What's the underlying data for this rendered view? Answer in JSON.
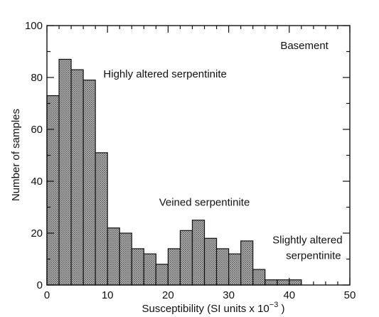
{
  "chart_data": {
    "type": "bar",
    "subtype": "histogram",
    "xlabel": "Susceptibility (SI units x 10",
    "xlabel_exponent": "−3",
    "xlabel_suffix": " )",
    "ylabel": "Number of samples",
    "xlim": [
      0,
      50
    ],
    "ylim": [
      0,
      100
    ],
    "x_ticks": [
      0,
      10,
      20,
      30,
      40,
      50
    ],
    "y_ticks": [
      0,
      20,
      40,
      60,
      80,
      100
    ],
    "bin_width": 2,
    "bins": [
      {
        "x0": 0,
        "x1": 2,
        "value": 73
      },
      {
        "x0": 2,
        "x1": 4,
        "value": 87
      },
      {
        "x0": 4,
        "x1": 6,
        "value": 83
      },
      {
        "x0": 6,
        "x1": 8,
        "value": 79
      },
      {
        "x0": 8,
        "x1": 10,
        "value": 51
      },
      {
        "x0": 10,
        "x1": 12,
        "value": 22
      },
      {
        "x0": 12,
        "x1": 14,
        "value": 20
      },
      {
        "x0": 14,
        "x1": 16,
        "value": 14
      },
      {
        "x0": 16,
        "x1": 18,
        "value": 12
      },
      {
        "x0": 18,
        "x1": 20,
        "value": 8
      },
      {
        "x0": 20,
        "x1": 22,
        "value": 14
      },
      {
        "x0": 22,
        "x1": 24,
        "value": 21
      },
      {
        "x0": 24,
        "x1": 26,
        "value": 25
      },
      {
        "x0": 26,
        "x1": 28,
        "value": 18
      },
      {
        "x0": 28,
        "x1": 30,
        "value": 14
      },
      {
        "x0": 30,
        "x1": 32,
        "value": 12
      },
      {
        "x0": 32,
        "x1": 34,
        "value": 17
      },
      {
        "x0": 34,
        "x1": 36,
        "value": 6
      },
      {
        "x0": 36,
        "x1": 38,
        "value": 2
      },
      {
        "x0": 38,
        "x1": 40,
        "value": 2
      },
      {
        "x0": 40,
        "x1": 42,
        "value": 2
      }
    ],
    "annotations": [
      {
        "text": "Basement",
        "x": 42.5,
        "y": 91
      },
      {
        "text": "Highly altered serpentinite",
        "x": 19.5,
        "y": 80
      },
      {
        "text": "Veined serpentinite",
        "x": 26,
        "y": 30.5
      },
      {
        "text": "Slightly altered",
        "x": 43,
        "y": 16
      },
      {
        "text": "serpentinite",
        "x": 44,
        "y": 10
      }
    ],
    "bar_color": "#8a8a8a",
    "grid": false,
    "legend": "none"
  }
}
